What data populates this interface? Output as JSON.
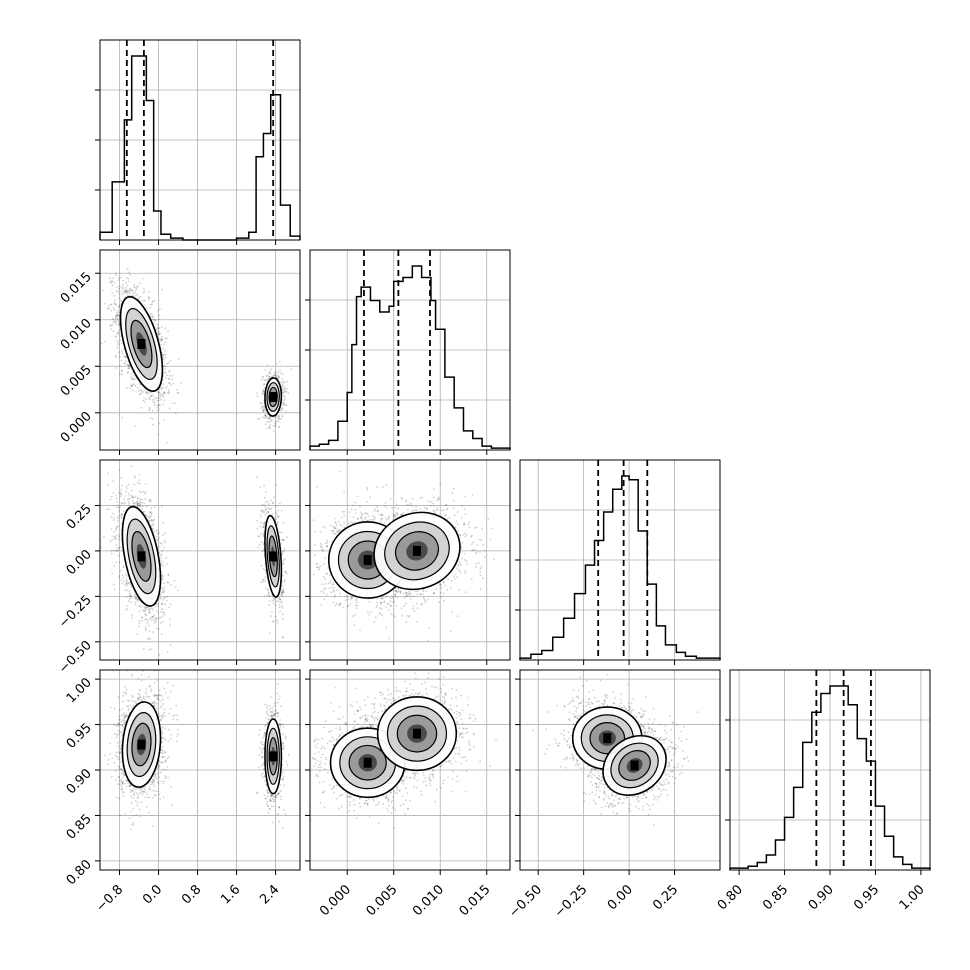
{
  "chart_data": {
    "type": "corner",
    "n_params": 4,
    "colors": {
      "line": "#000000",
      "grid": "#b0b0b0",
      "points": "#000000",
      "background": "#ffffff"
    },
    "grid": true,
    "params": [
      {
        "range": [
          -1.2,
          2.9
        ],
        "ticks": [
          -0.8,
          0.0,
          0.8,
          1.6,
          2.4
        ],
        "tick_labels": [
          "−0.8",
          "0.0",
          "0.8",
          "1.6",
          "2.4"
        ],
        "quantiles": [
          -0.65,
          -0.3,
          2.35
        ],
        "histogram": {
          "edges": [
            -1.2,
            -0.95,
            -0.7,
            -0.55,
            -0.4,
            -0.25,
            -0.1,
            0.05,
            0.25,
            0.5,
            0.8,
            1.2,
            1.6,
            1.85,
            2.0,
            2.15,
            2.3,
            2.5,
            2.7,
            2.9
          ],
          "counts": [
            0.04,
            0.3,
            0.62,
            0.95,
            0.95,
            0.72,
            0.15,
            0.03,
            0.01,
            0.0,
            0.0,
            0.0,
            0.01,
            0.04,
            0.43,
            0.55,
            0.75,
            0.18,
            0.02
          ]
        }
      },
      {
        "range": [
          -0.004,
          0.0175
        ],
        "ticks": [
          0.0,
          0.005,
          0.01,
          0.015
        ],
        "tick_labels": [
          "0.000",
          "0.005",
          "0.010",
          "0.015"
        ],
        "quantiles": [
          0.0018,
          0.0055,
          0.0089
        ],
        "histogram": {
          "edges": [
            -0.004,
            -0.003,
            -0.002,
            -0.001,
            0.0,
            0.0005,
            0.001,
            0.0015,
            0.0025,
            0.0035,
            0.0045,
            0.005,
            0.006,
            0.007,
            0.008,
            0.009,
            0.0095,
            0.0105,
            0.0115,
            0.0125,
            0.0135,
            0.0145,
            0.0155,
            0.0175
          ],
          "counts": [
            0.02,
            0.03,
            0.05,
            0.15,
            0.3,
            0.55,
            0.8,
            0.85,
            0.78,
            0.72,
            0.75,
            0.88,
            0.9,
            0.96,
            0.9,
            0.78,
            0.63,
            0.38,
            0.22,
            0.1,
            0.06,
            0.02,
            0.01
          ]
        }
      },
      {
        "range": [
          -0.6,
          0.5
        ],
        "ticks": [
          -0.5,
          -0.25,
          0.0,
          0.25
        ],
        "tick_labels": [
          "−0.50",
          "−0.25",
          "0.00",
          "0.25"
        ],
        "quantiles": [
          -0.17,
          -0.03,
          0.1
        ],
        "histogram": {
          "edges": [
            -0.6,
            -0.54,
            -0.48,
            -0.42,
            -0.36,
            -0.3,
            -0.24,
            -0.19,
            -0.14,
            -0.09,
            -0.04,
            0.0,
            0.05,
            0.1,
            0.15,
            0.2,
            0.26,
            0.31,
            0.37,
            0.43,
            0.5
          ],
          "counts": [
            0.01,
            0.03,
            0.05,
            0.12,
            0.22,
            0.35,
            0.5,
            0.63,
            0.78,
            0.9,
            0.97,
            0.95,
            0.68,
            0.4,
            0.18,
            0.08,
            0.04,
            0.02,
            0.01,
            0.01
          ]
        }
      },
      {
        "range": [
          0.79,
          1.01
        ],
        "ticks": [
          0.8,
          0.85,
          0.9,
          0.95,
          1.0
        ],
        "tick_labels": [
          "0.80",
          "0.85",
          "0.90",
          "0.95",
          "1.00"
        ],
        "quantiles": [
          0.885,
          0.915,
          0.945
        ],
        "histogram": {
          "edges": [
            0.79,
            0.81,
            0.82,
            0.83,
            0.84,
            0.85,
            0.86,
            0.87,
            0.88,
            0.89,
            0.9,
            0.91,
            0.92,
            0.93,
            0.94,
            0.95,
            0.96,
            0.97,
            0.98,
            0.99,
            1.0,
            1.01
          ],
          "counts": [
            0.01,
            0.02,
            0.04,
            0.08,
            0.16,
            0.28,
            0.44,
            0.68,
            0.84,
            0.94,
            0.98,
            0.98,
            0.88,
            0.7,
            0.58,
            0.34,
            0.18,
            0.07,
            0.03,
            0.01,
            0.01
          ]
        }
      }
    ],
    "pairs": [
      {
        "x": 0,
        "y": 1,
        "blobs": [
          {
            "cx": -0.35,
            "cy": 0.0074,
            "sx": 0.22,
            "sy": 0.0026,
            "rho": -0.55,
            "weight": 0.7
          },
          {
            "cx": 2.35,
            "cy": 0.0017,
            "sx": 0.09,
            "sy": 0.0011,
            "rho": 0.05,
            "weight": 0.3
          }
        ]
      },
      {
        "x": 0,
        "y": 2,
        "blobs": [
          {
            "cx": -0.35,
            "cy": -0.03,
            "sx": 0.2,
            "sy": 0.14,
            "rho": -0.45,
            "weight": 0.7
          },
          {
            "cx": 2.35,
            "cy": -0.03,
            "sx": 0.09,
            "sy": 0.12,
            "rho": -0.35,
            "weight": 0.3
          }
        ]
      },
      {
        "x": 0,
        "y": 3,
        "blobs": [
          {
            "cx": -0.35,
            "cy": 0.928,
            "sx": 0.2,
            "sy": 0.024,
            "rho": 0.15,
            "weight": 0.7
          },
          {
            "cx": 2.35,
            "cy": 0.915,
            "sx": 0.09,
            "sy": 0.022,
            "rho": 0.0,
            "weight": 0.3
          }
        ]
      },
      {
        "x": 1,
        "y": 2,
        "blobs": [
          {
            "cx": 0.0022,
            "cy": -0.05,
            "sx": 0.0022,
            "sy": 0.11,
            "rho": 0.0,
            "weight": 0.45
          },
          {
            "cx": 0.0075,
            "cy": 0.0,
            "sx": 0.0024,
            "sy": 0.11,
            "rho": 0.1,
            "weight": 0.55
          }
        ]
      },
      {
        "x": 1,
        "y": 3,
        "blobs": [
          {
            "cx": 0.0022,
            "cy": 0.908,
            "sx": 0.0021,
            "sy": 0.02,
            "rho": 0.0,
            "weight": 0.45
          },
          {
            "cx": 0.0075,
            "cy": 0.94,
            "sx": 0.0022,
            "sy": 0.021,
            "rho": 0.0,
            "weight": 0.55
          }
        ]
      },
      {
        "x": 2,
        "y": 3,
        "blobs": [
          {
            "cx": -0.12,
            "cy": 0.935,
            "sx": 0.1,
            "sy": 0.018,
            "rho": 0.0,
            "weight": 0.45
          },
          {
            "cx": 0.03,
            "cy": 0.905,
            "sx": 0.09,
            "sy": 0.017,
            "rho": 0.2,
            "weight": 0.55
          }
        ]
      }
    ]
  }
}
